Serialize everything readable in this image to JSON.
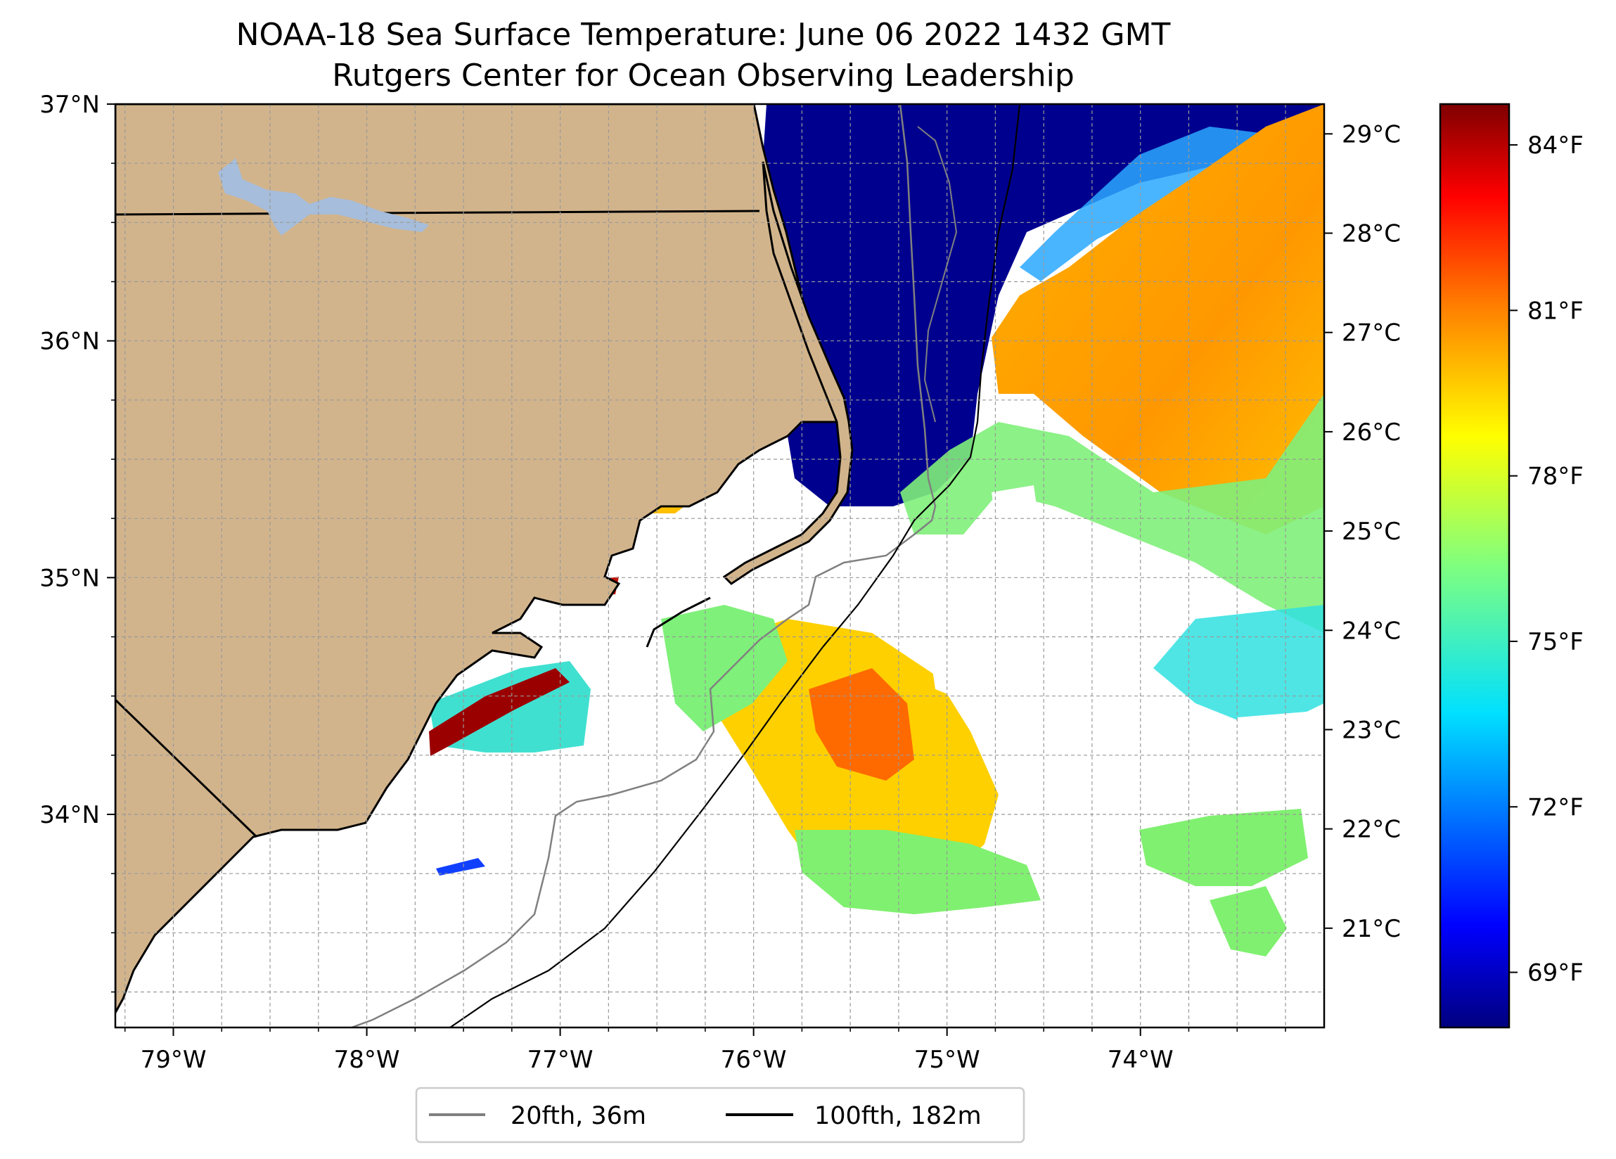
{
  "title": {
    "line1": "NOAA-18 Sea Surface Temperature: June 06 2022 1432 GMT",
    "line2": "Rutgers Center for Ocean Observing Leadership"
  },
  "map": {
    "lon_range": [
      -79.3,
      -73.05
    ],
    "lat_range": [
      33.1,
      37.0
    ],
    "lat_labels": [
      {
        "lat": 37,
        "text": "37°N"
      },
      {
        "lat": 36,
        "text": "36°N"
      },
      {
        "lat": 35,
        "text": "35°N"
      },
      {
        "lat": 34,
        "text": "34°N"
      }
    ],
    "lon_labels": [
      {
        "lon": -79,
        "text": "79°W"
      },
      {
        "lon": -78,
        "text": "78°W"
      },
      {
        "lon": -77,
        "text": "77°W"
      },
      {
        "lon": -76,
        "text": "76°W"
      },
      {
        "lon": -75,
        "text": "75°W"
      },
      {
        "lon": -74,
        "text": "74°W"
      }
    ],
    "gridlines": true,
    "land_color": "#d2b48c",
    "lake_color": "#a6bddb",
    "no_data_color": "#ffffff"
  },
  "colorbar": {
    "colormap": "jet",
    "celsius_labels": [
      "29°C",
      "28°C",
      "27°C",
      "26°C",
      "25°C",
      "24°C",
      "23°C",
      "22°C",
      "21°C"
    ],
    "fahrenheit_labels": [
      "84°F",
      "81°F",
      "78°F",
      "75°F",
      "72°F",
      "69°F"
    ],
    "range_c": [
      20.0,
      29.3
    ],
    "colors": [
      "#00007f",
      "#0000ff",
      "#007fff",
      "#00ffff",
      "#7fff7f",
      "#ffff00",
      "#ff7f00",
      "#ff0000",
      "#7f0000"
    ]
  },
  "legend": {
    "items": [
      {
        "label": "20fth, 36m",
        "color": "#808080"
      },
      {
        "label": "100fth, 182m",
        "color": "#000000"
      }
    ]
  }
}
